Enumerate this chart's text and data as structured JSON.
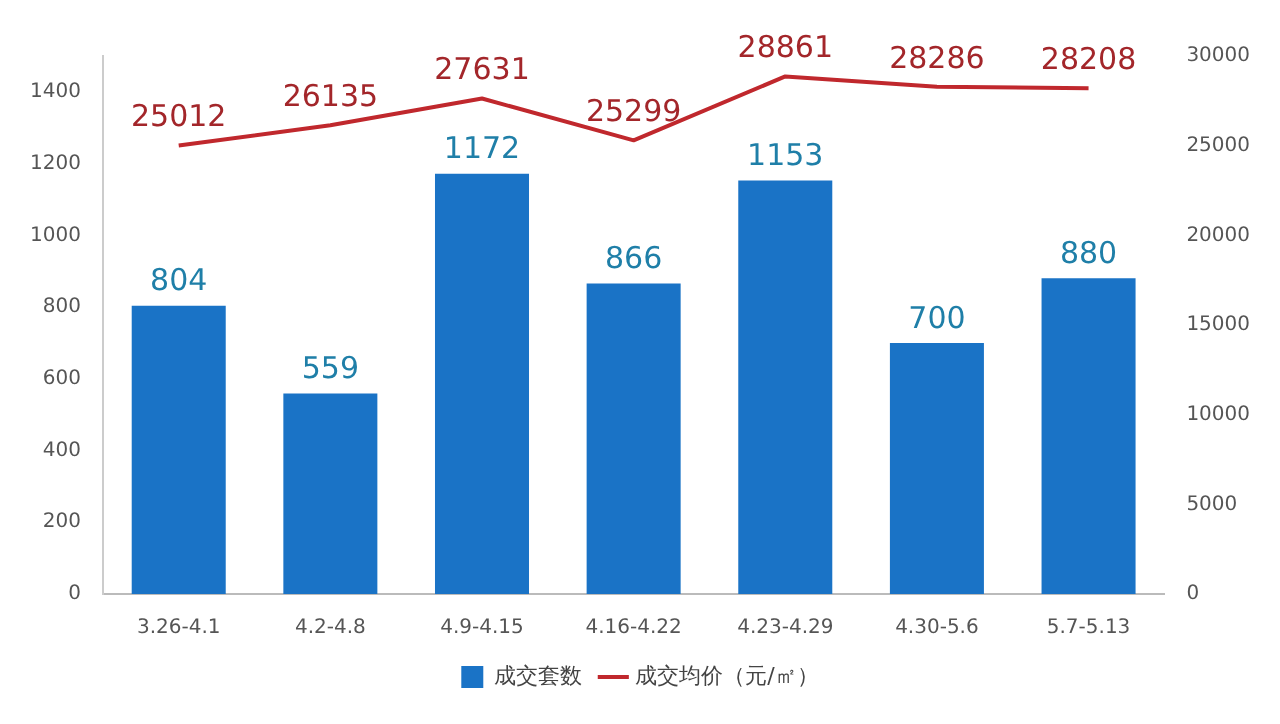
{
  "chart_data": {
    "type": "bar",
    "categories": [
      "3.26-4.1",
      "4.2-4.8",
      "4.9-4.15",
      "4.16-4.22",
      "4.23-4.29",
      "4.30-5.6",
      "5.7-5.13"
    ],
    "series": [
      {
        "name": "成交套数",
        "color": "#1a73c6",
        "values": [
          804,
          559,
          1172,
          866,
          1153,
          700,
          880
        ]
      },
      {
        "name": "成交均价（元/㎡）",
        "type": "line",
        "axis": "y2",
        "color": "#c0282d",
        "values": [
          25012,
          26135,
          27631,
          25299,
          28861,
          28286,
          28208
        ]
      }
    ],
    "ylim": [
      0,
      1500
    ],
    "yticks": [
      0,
      200,
      400,
      600,
      800,
      1000,
      1200,
      1400
    ],
    "y2lim": [
      0,
      30000
    ],
    "y2ticks": [
      0,
      5000,
      10000,
      15000,
      20000,
      25000,
      30000
    ],
    "data_labels": true,
    "legend": "bottom",
    "grid": false,
    "marker": "none"
  }
}
